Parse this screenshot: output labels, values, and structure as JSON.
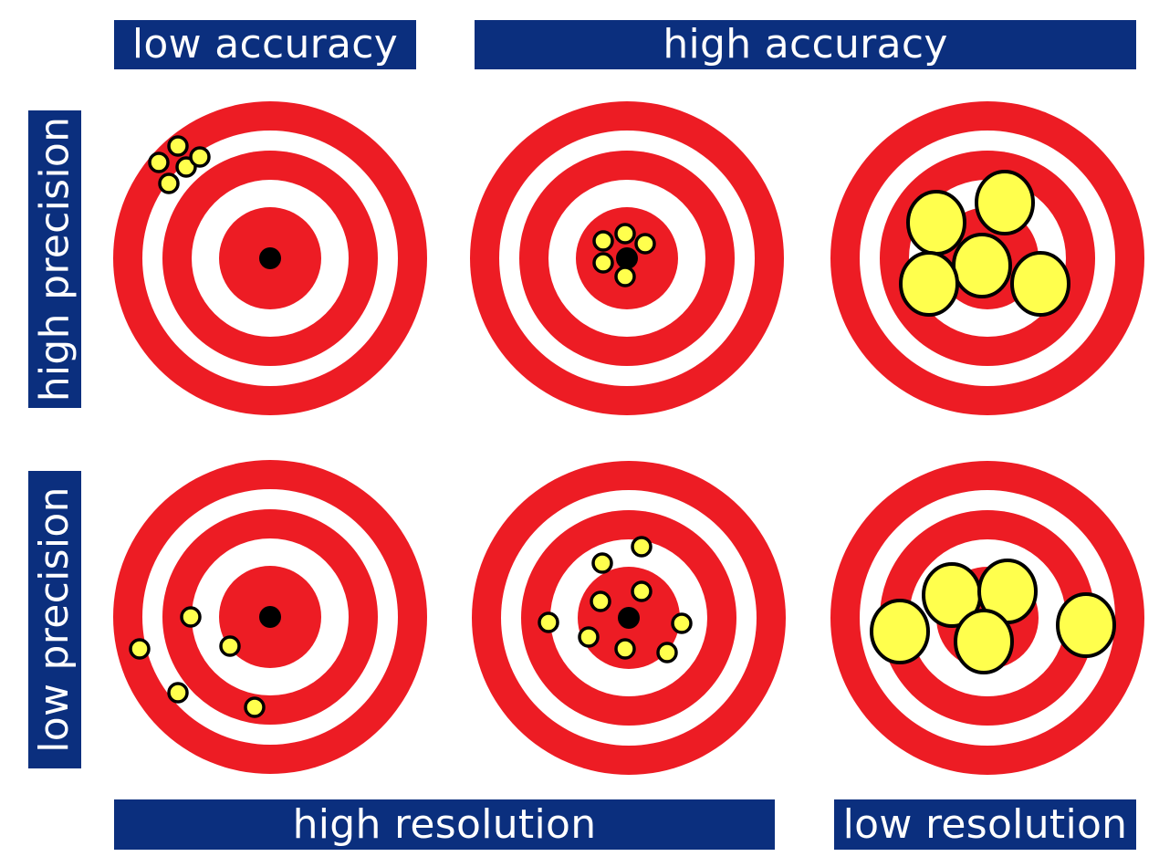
{
  "labels": {
    "low_accuracy": "low accuracy",
    "high_accuracy": "high accuracy",
    "high_precision": "high precision",
    "low_precision": "low precision",
    "high_resolution": "high resolution",
    "low_resolution": "low resolution"
  },
  "colors": {
    "banner": "#0b2f7e",
    "ring": "#ed1c24",
    "shot": "#ffff4d",
    "bullseye": "#000000"
  },
  "targets": [
    {
      "name": "target-low-accuracy-high-precision",
      "shot_size": "small"
    },
    {
      "name": "target-high-accuracy-high-precision",
      "shot_size": "small"
    },
    {
      "name": "target-high-accuracy-high-precision-low-resolution",
      "shot_size": "large"
    },
    {
      "name": "target-low-accuracy-low-precision",
      "shot_size": "small"
    },
    {
      "name": "target-high-accuracy-low-precision",
      "shot_size": "small"
    },
    {
      "name": "target-high-accuracy-low-precision-low-resolution",
      "shot_size": "large"
    }
  ]
}
